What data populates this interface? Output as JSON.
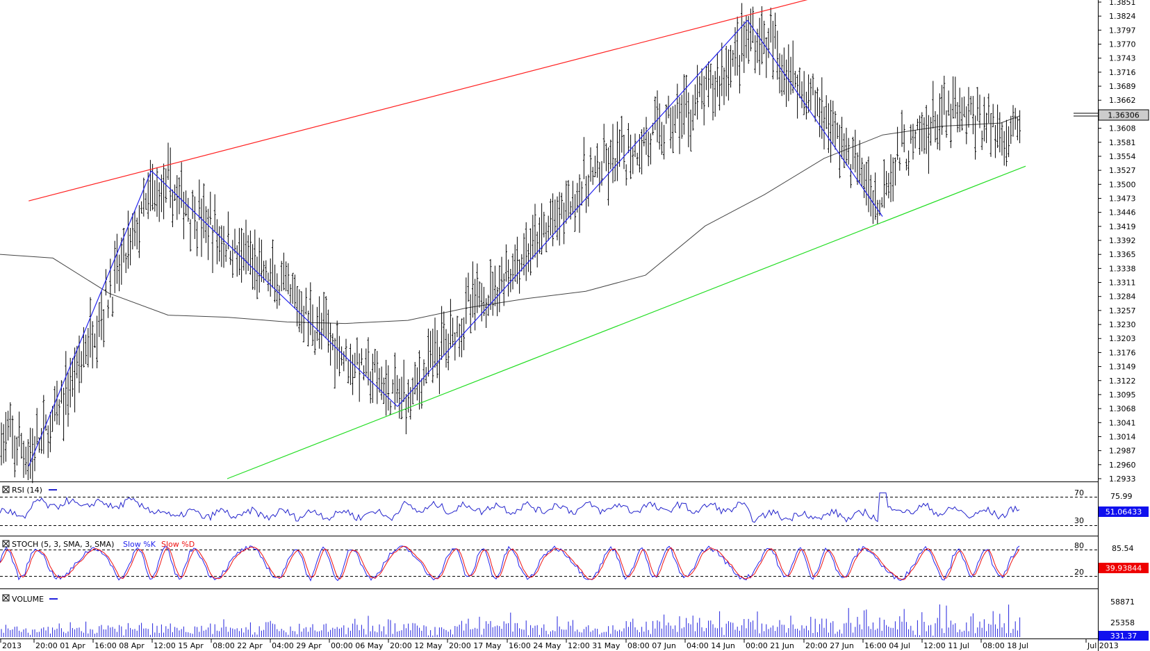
{
  "price_axis": {
    "labels": [
      "1.3851",
      "1.3824",
      "1.3797",
      "1.3770",
      "1.3743",
      "1.3716",
      "1.3689",
      "1.3662",
      "1.3635",
      "1.3608",
      "1.3581",
      "1.3554",
      "1.3527",
      "1.3500",
      "1.3473",
      "1.3446",
      "1.3419",
      "1.3392",
      "1.3365",
      "1.3338",
      "1.3311",
      "1.3284",
      "1.3257",
      "1.3230",
      "1.3203",
      "1.3176",
      "1.3149",
      "1.3122",
      "1.3095",
      "1.3068",
      "1.3041",
      "1.3014",
      "1.2987",
      "1.2960",
      "1.2933"
    ],
    "current_price": "1.36306"
  },
  "time_axis": {
    "labels": [
      "2013",
      "20:00 01 Apr",
      "16:00 08 Apr",
      "12:00 15 Apr",
      "08:00 22 Apr",
      "04:00 29 Apr",
      "00:00 06 May",
      "20:00 12 May",
      "20:00 17 May",
      "16:00 24 May",
      "12:00 31 May",
      "08:00 07 Jun",
      "04:00 14 Jun",
      "00:00 21 Jun",
      "20:00 27 Jun",
      "16:00 04 Jul",
      "12:00 11 Jul",
      "08:00 18 Jul",
      "Jul 2013"
    ]
  },
  "panels": {
    "rsi": {
      "title": "RSI (14)",
      "level_high": "70",
      "level_low": "30",
      "scale_value": "75.99",
      "current": "51.06433"
    },
    "stoch": {
      "title": "STOCH (5, 3, SMA, 3, SMA)",
      "slow_k": "Slow %K",
      "slow_d": "Slow %D",
      "level_high": "80",
      "level_low": "20",
      "scale_value": "85.54",
      "current": "39.93844"
    },
    "volume": {
      "title": "VOLUME",
      "scale_high": "58871",
      "scale_mid": "25358",
      "current": "331.37"
    }
  },
  "colors": {
    "resistance": "#ff2020",
    "support": "#22dd22",
    "zigzag": "#2222ee",
    "sma": "#444444",
    "rsi": "#2222cc",
    "stoch_k": "#2222ee",
    "stoch_d": "#ee1111",
    "volume": "#2222dd",
    "bars": "#000000",
    "badge_price": "#cccccc",
    "badge_blue": "#1010ee",
    "badge_red": "#ee0000"
  },
  "chart_data": {
    "type": "ohlc",
    "x": [
      "01 Apr",
      "08 Apr",
      "15 Apr",
      "22 Apr",
      "29 Apr",
      "06 May",
      "12 May",
      "17 May",
      "24 May",
      "31 May",
      "07 Jun",
      "14 Jun",
      "21 Jun",
      "27 Jun",
      "04 Jul",
      "11 Jul",
      "18 Jul"
    ],
    "approx_close": [
      1.2995,
      1.324,
      1.349,
      1.338,
      1.33,
      1.318,
      1.309,
      1.33,
      1.338,
      1.354,
      1.356,
      1.36,
      1.379,
      1.368,
      1.346,
      1.362,
      1.363
    ],
    "ylim": [
      1.2922,
      1.3864
    ],
    "swing_points": [
      {
        "x": "29 Mar",
        "y": 1.2957
      },
      {
        "x": "13 Apr",
        "y": 1.3526
      },
      {
        "x": "11 May",
        "y": 1.3072
      },
      {
        "x": "19 Jun",
        "y": 1.3816
      },
      {
        "x": "04 Jul",
        "y": 1.3438
      }
    ],
    "trend_lines": [
      {
        "name": "Resistance",
        "from": {
          "x": "29 Mar",
          "y": 1.3468
        },
        "to": {
          "x": "27 Jun",
          "y": 1.3864
        }
      },
      {
        "name": "Support",
        "from": {
          "x": "22 Apr",
          "y": 1.2933
        },
        "to": {
          "x": "21 Jul",
          "y": 1.3535
        }
      }
    ],
    "moving_average": [
      1.3358,
      1.329,
      1.3248,
      1.3244,
      1.3235,
      1.3232,
      1.3238,
      1.3262,
      1.328,
      1.3294,
      1.3325,
      1.342,
      1.348,
      1.355,
      1.3595,
      1.3612,
      1.3618
    ]
  }
}
